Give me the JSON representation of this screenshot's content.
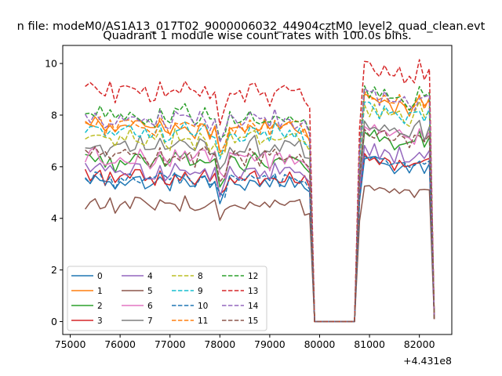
{
  "page": {
    "suptitle": "n file: modeM0/AS1A13_017T02_9000006032_44904cztM0_level2_quad_clean.evt"
  },
  "chart_data": {
    "type": "line",
    "title": "Quadrant 1 module wise count rates with 100.0s bins.",
    "xlabel": "",
    "ylabel": "",
    "x_offset_label": "+4.431e8",
    "xlim": [
      74850,
      82650
    ],
    "ylim": [
      -0.5,
      10.7
    ],
    "x_ticks": [
      75000,
      76000,
      77000,
      78000,
      79000,
      80000,
      81000,
      82000
    ],
    "x_tick_labels": [
      "75000",
      "76000",
      "77000",
      "78000",
      "79000",
      "80000",
      "81000",
      "82000"
    ],
    "y_ticks": [
      0,
      2,
      4,
      6,
      8,
      10
    ],
    "y_tick_labels": [
      "0",
      "2",
      "4",
      "6",
      "8",
      "10"
    ],
    "grid": false,
    "legend": {
      "placement": "lower-left",
      "columns": 4
    },
    "segments": [
      {
        "start": 75300,
        "count": 46
      },
      {
        "start": 79900,
        "count": 9
      },
      {
        "start": 80800,
        "count": 16
      }
    ],
    "bin_width": 100,
    "series": [
      {
        "name": "0",
        "color": "#1f77b4",
        "dash": "solid",
        "level_a": 5.4,
        "level_b": 6.0,
        "zero": 0.0,
        "spread": 0.22
      },
      {
        "name": "1",
        "color": "#ff7f0e",
        "dash": "solid",
        "level_a": 7.5,
        "level_b": 8.4,
        "zero": 0.0,
        "spread": 0.25
      },
      {
        "name": "2",
        "color": "#2ca02c",
        "dash": "solid",
        "level_a": 6.2,
        "level_b": 7.0,
        "zero": 0.0,
        "spread": 0.25
      },
      {
        "name": "3",
        "color": "#d62728",
        "dash": "solid",
        "level_a": 5.6,
        "level_b": 6.2,
        "zero": 0.0,
        "spread": 0.25
      },
      {
        "name": "4",
        "color": "#9467bd",
        "dash": "solid",
        "level_a": 5.8,
        "level_b": 6.5,
        "zero": 0.0,
        "spread": 0.25
      },
      {
        "name": "5",
        "color": "#8c564b",
        "dash": "solid",
        "level_a": 4.5,
        "level_b": 5.0,
        "zero": 0.0,
        "spread": 0.25
      },
      {
        "name": "6",
        "color": "#e377c2",
        "dash": "solid",
        "level_a": 6.3,
        "level_b": 7.2,
        "zero": 0.0,
        "spread": 0.3
      },
      {
        "name": "7",
        "color": "#7f7f7f",
        "dash": "solid",
        "level_a": 6.8,
        "level_b": 7.4,
        "zero": 0.0,
        "spread": 0.3
      },
      {
        "name": "8",
        "color": "#bcbd22",
        "dash": "dashed",
        "level_a": 7.1,
        "level_b": 8.0,
        "zero": 0.0,
        "spread": 0.3
      },
      {
        "name": "9",
        "color": "#17becf",
        "dash": "dashed",
        "level_a": 7.3,
        "level_b": 8.1,
        "zero": 0.0,
        "spread": 0.3
      },
      {
        "name": "10",
        "color": "#1f77b4",
        "dash": "dashed",
        "level_a": 5.5,
        "level_b": 6.1,
        "zero": 0.0,
        "spread": 0.25
      },
      {
        "name": "11",
        "color": "#ff7f0e",
        "dash": "dashed",
        "level_a": 7.6,
        "level_b": 8.5,
        "zero": 0.0,
        "spread": 0.25
      },
      {
        "name": "12",
        "color": "#2ca02c",
        "dash": "dashed",
        "level_a": 7.9,
        "level_b": 8.7,
        "zero": 0.0,
        "spread": 0.3
      },
      {
        "name": "13",
        "color": "#d62728",
        "dash": "dashed",
        "level_a": 8.9,
        "level_b": 9.6,
        "zero": 0.0,
        "spread": 0.3
      },
      {
        "name": "14",
        "color": "#9467bd",
        "dash": "dashed",
        "level_a": 7.8,
        "level_b": 8.6,
        "zero": 0.0,
        "spread": 0.3
      },
      {
        "name": "15",
        "color": "#8c564b",
        "dash": "dashed",
        "level_a": 6.4,
        "level_b": 7.1,
        "zero": 0.0,
        "spread": 0.3
      }
    ]
  }
}
